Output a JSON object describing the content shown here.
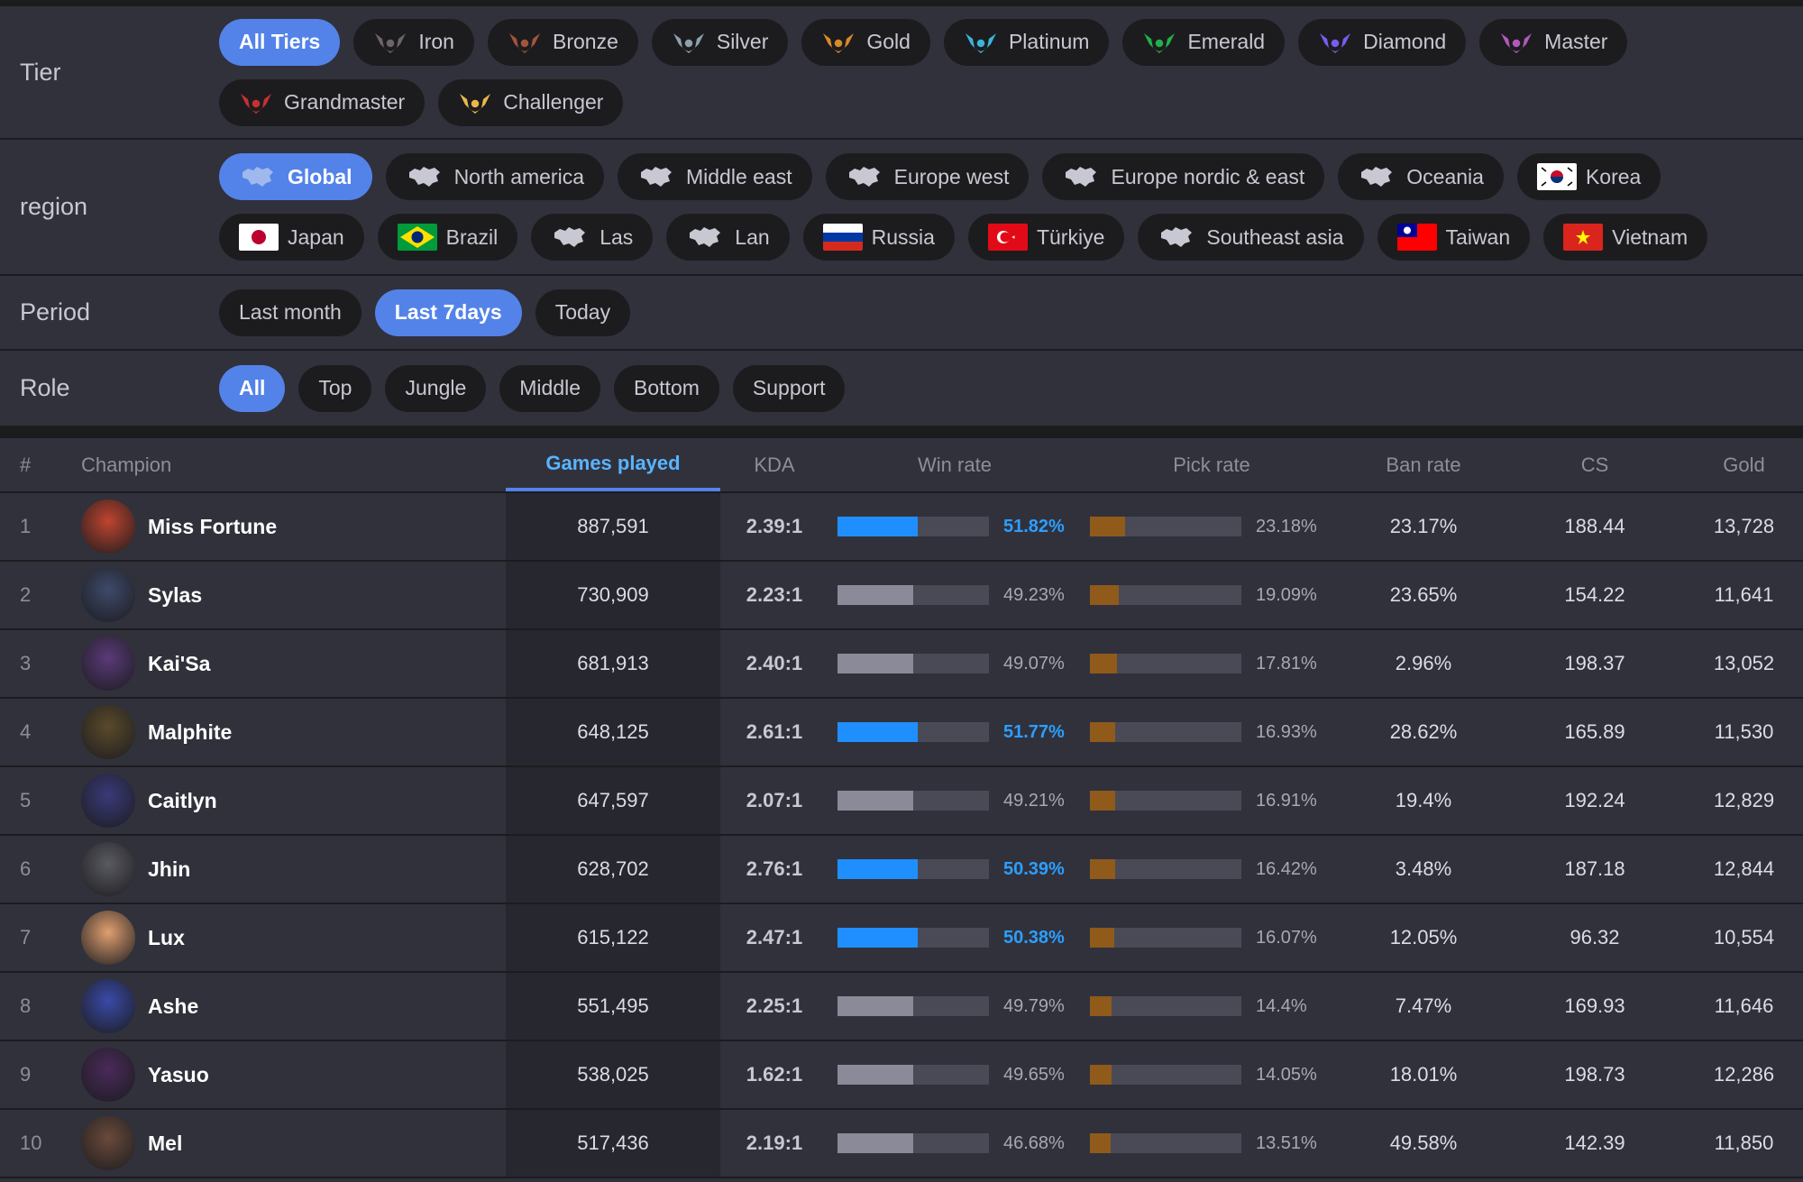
{
  "filters": {
    "tier": {
      "label": "Tier",
      "options": [
        {
          "label": "All Tiers",
          "active": true,
          "icon": "",
          "color": ""
        },
        {
          "label": "Iron",
          "active": false,
          "icon": "iron-emblem-icon",
          "color": "#6e6468"
        },
        {
          "label": "Bronze",
          "active": false,
          "icon": "bronze-emblem-icon",
          "color": "#a0553b"
        },
        {
          "label": "Silver",
          "active": false,
          "icon": "silver-emblem-icon",
          "color": "#8ea0aa"
        },
        {
          "label": "Gold",
          "active": false,
          "icon": "gold-emblem-icon",
          "color": "#d68a2a"
        },
        {
          "label": "Platinum",
          "active": false,
          "icon": "platinum-emblem-icon",
          "color": "#3ab4d8"
        },
        {
          "label": "Emerald",
          "active": false,
          "icon": "emerald-emblem-icon",
          "color": "#22b04a"
        },
        {
          "label": "Diamond",
          "active": false,
          "icon": "diamond-emblem-icon",
          "color": "#7a5cf0"
        },
        {
          "label": "Master",
          "active": false,
          "icon": "master-emblem-icon",
          "color": "#b05ab8"
        },
        {
          "label": "Grandmaster",
          "active": false,
          "icon": "grandmaster-emblem-icon",
          "color": "#c8302e"
        },
        {
          "label": "Challenger",
          "active": false,
          "icon": "challenger-emblem-icon",
          "color": "#e8b84a"
        }
      ]
    },
    "region": {
      "label": "region",
      "options": [
        {
          "label": "Global",
          "active": true,
          "icon": "world-map-icon"
        },
        {
          "label": "North america",
          "active": false,
          "icon": "north-america-map-icon"
        },
        {
          "label": "Middle east",
          "active": false,
          "icon": "middle-east-map-icon"
        },
        {
          "label": "Europe west",
          "active": false,
          "icon": "europe-west-map-icon"
        },
        {
          "label": "Europe nordic & east",
          "active": false,
          "icon": "europe-nordic-east-map-icon"
        },
        {
          "label": "Oceania",
          "active": false,
          "icon": "oceania-map-icon"
        },
        {
          "label": "Korea",
          "active": false,
          "icon": "korea-flag-icon"
        },
        {
          "label": "Japan",
          "active": false,
          "icon": "japan-flag-icon"
        },
        {
          "label": "Brazil",
          "active": false,
          "icon": "brazil-flag-icon"
        },
        {
          "label": "Las",
          "active": false,
          "icon": "las-map-icon"
        },
        {
          "label": "Lan",
          "active": false,
          "icon": "lan-map-icon"
        },
        {
          "label": "Russia",
          "active": false,
          "icon": "russia-flag-icon"
        },
        {
          "label": "Türkiye",
          "active": false,
          "icon": "turkiye-flag-icon"
        },
        {
          "label": "Southeast asia",
          "active": false,
          "icon": "southeast-asia-map-icon"
        },
        {
          "label": "Taiwan",
          "active": false,
          "icon": "taiwan-flag-icon"
        },
        {
          "label": "Vietnam",
          "active": false,
          "icon": "vietnam-flag-icon"
        }
      ]
    },
    "period": {
      "label": "Period",
      "options": [
        {
          "label": "Last month",
          "active": false
        },
        {
          "label": "Last 7days",
          "active": true
        },
        {
          "label": "Today",
          "active": false
        }
      ]
    },
    "role": {
      "label": "Role",
      "options": [
        {
          "label": "All",
          "active": true
        },
        {
          "label": "Top",
          "active": false
        },
        {
          "label": "Jungle",
          "active": false
        },
        {
          "label": "Middle",
          "active": false
        },
        {
          "label": "Bottom",
          "active": false
        },
        {
          "label": "Support",
          "active": false
        }
      ]
    }
  },
  "table": {
    "headers": {
      "rank": "#",
      "champion": "Champion",
      "games": "Games played",
      "kda": "KDA",
      "win": "Win rate",
      "pick": "Pick rate",
      "ban": "Ban rate",
      "cs": "CS",
      "gold": "Gold"
    },
    "colors": {
      "win_high": "#1f8fff",
      "win_low": "#8a8a98",
      "pick": "#8f5a1a",
      "accent": "#5383e8"
    },
    "rows": [
      {
        "rank": "1",
        "name": "Miss Fortune",
        "games": "887,591",
        "kda": "2.39:1",
        "win": "51.82%",
        "win_value": 0.5182,
        "pick": "23.18%",
        "pick_value": 0.2318,
        "ban": "23.17%",
        "cs": "188.44",
        "gold": "13,728",
        "avatar_color": "#c0442e"
      },
      {
        "rank": "2",
        "name": "Sylas",
        "games": "730,909",
        "kda": "2.23:1",
        "win": "49.23%",
        "win_value": 0.4923,
        "pick": "19.09%",
        "pick_value": 0.1909,
        "ban": "23.65%",
        "cs": "154.22",
        "gold": "11,641",
        "avatar_color": "#3e4a6a"
      },
      {
        "rank": "3",
        "name": "Kai'Sa",
        "games": "681,913",
        "kda": "2.40:1",
        "win": "49.07%",
        "win_value": 0.4907,
        "pick": "17.81%",
        "pick_value": 0.1781,
        "ban": "2.96%",
        "cs": "198.37",
        "gold": "13,052",
        "avatar_color": "#5a3a78"
      },
      {
        "rank": "4",
        "name": "Malphite",
        "games": "648,125",
        "kda": "2.61:1",
        "win": "51.77%",
        "win_value": 0.5177,
        "pick": "16.93%",
        "pick_value": 0.1693,
        "ban": "28.62%",
        "cs": "165.89",
        "gold": "11,530",
        "avatar_color": "#5a4a2a"
      },
      {
        "rank": "5",
        "name": "Caitlyn",
        "games": "647,597",
        "kda": "2.07:1",
        "win": "49.21%",
        "win_value": 0.4921,
        "pick": "16.91%",
        "pick_value": 0.1691,
        "ban": "19.4%",
        "cs": "192.24",
        "gold": "12,829",
        "avatar_color": "#3a3a7a"
      },
      {
        "rank": "6",
        "name": "Jhin",
        "games": "628,702",
        "kda": "2.76:1",
        "win": "50.39%",
        "win_value": 0.5039,
        "pick": "16.42%",
        "pick_value": 0.1642,
        "ban": "3.48%",
        "cs": "187.18",
        "gold": "12,844",
        "avatar_color": "#5a5a62"
      },
      {
        "rank": "7",
        "name": "Lux",
        "games": "615,122",
        "kda": "2.47:1",
        "win": "50.38%",
        "win_value": 0.5038,
        "pick": "16.07%",
        "pick_value": 0.1607,
        "ban": "12.05%",
        "cs": "96.32",
        "gold": "10,554",
        "avatar_color": "#e0a070"
      },
      {
        "rank": "8",
        "name": "Ashe",
        "games": "551,495",
        "kda": "2.25:1",
        "win": "49.79%",
        "win_value": 0.4979,
        "pick": "14.4%",
        "pick_value": 0.144,
        "ban": "7.47%",
        "cs": "169.93",
        "gold": "11,646",
        "avatar_color": "#3a4aa8"
      },
      {
        "rank": "9",
        "name": "Yasuo",
        "games": "538,025",
        "kda": "1.62:1",
        "win": "49.65%",
        "win_value": 0.4965,
        "pick": "14.05%",
        "pick_value": 0.1405,
        "ban": "18.01%",
        "cs": "198.73",
        "gold": "12,286",
        "avatar_color": "#4a2a5a"
      },
      {
        "rank": "10",
        "name": "Mel",
        "games": "517,436",
        "kda": "2.19:1",
        "win": "46.68%",
        "win_value": 0.4668,
        "pick": "13.51%",
        "pick_value": 0.1351,
        "ban": "49.58%",
        "cs": "142.39",
        "gold": "11,850",
        "avatar_color": "#6a4a3a"
      }
    ]
  }
}
